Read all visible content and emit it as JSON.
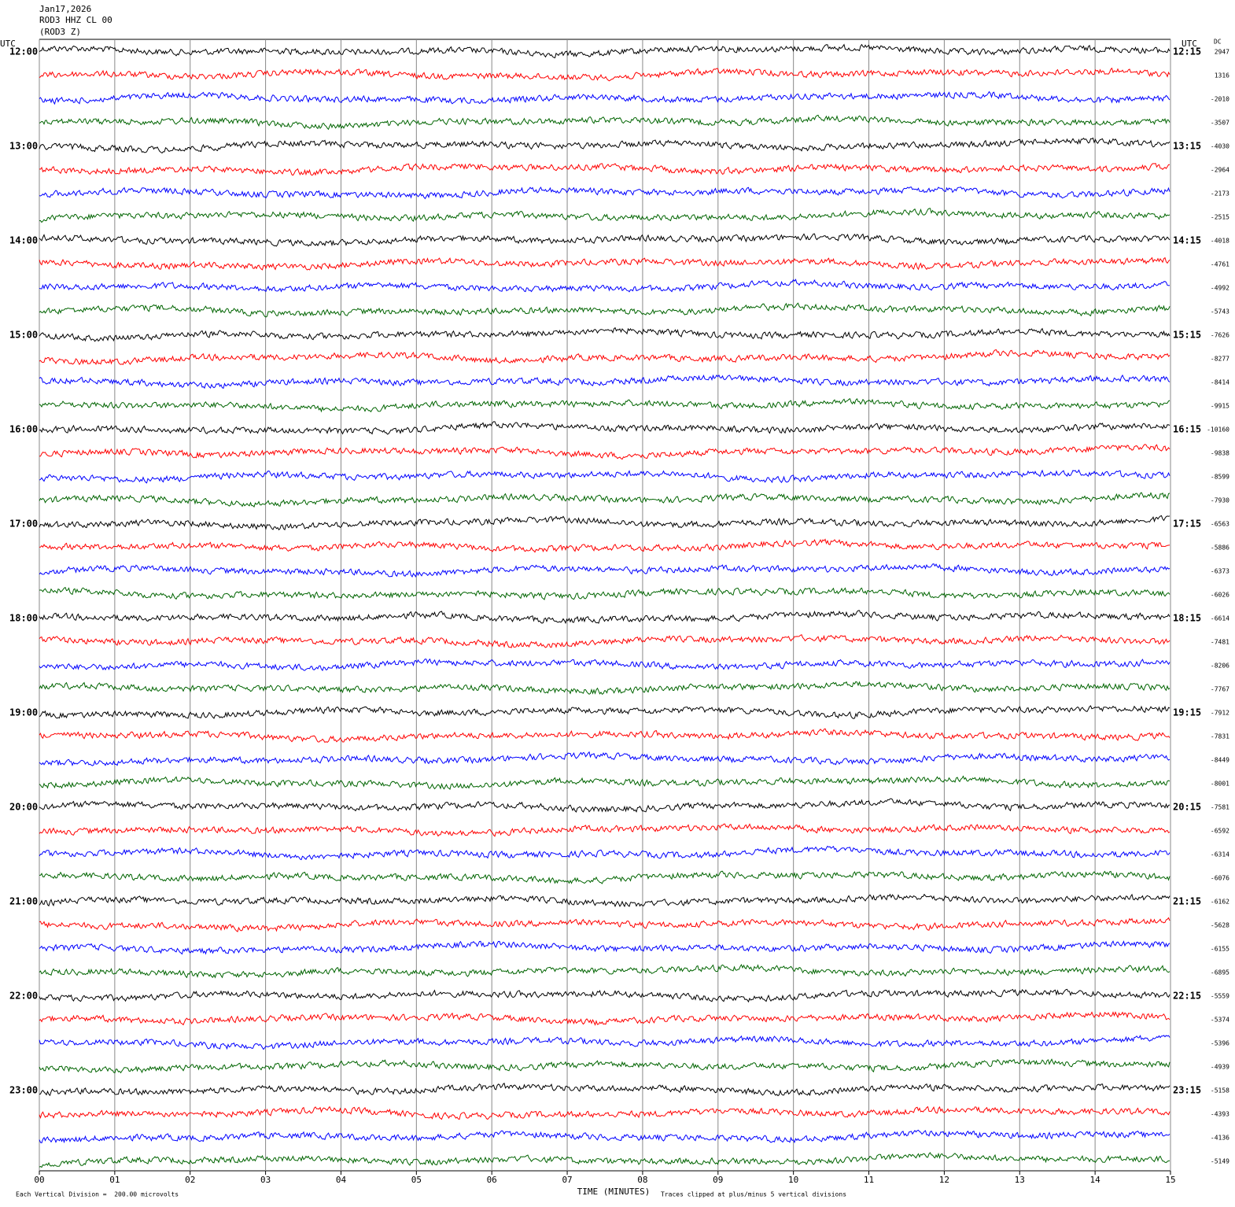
{
  "chart_data": {
    "type": "helicorder",
    "header": [
      "Jan17,2026",
      "ROD3 HHZ CL 00",
      "(ROD3 Z)"
    ],
    "left_axis_label": "UTC",
    "right_axis_label": "UTC",
    "dc_label": "DC",
    "left_labels": [
      "12:00",
      "13:00",
      "14:00",
      "15:00",
      "16:00",
      "17:00",
      "18:00",
      "19:00",
      "20:00",
      "21:00",
      "22:00",
      "23:00"
    ],
    "right_labels": [
      "12:15",
      "13:15",
      "14:15",
      "15:15",
      "16:15",
      "17:15",
      "18:15",
      "19:15",
      "20:15",
      "21:15",
      "22:15",
      "23:15"
    ],
    "dc_offsets": [
      2947,
      1316,
      -2010,
      -3507,
      -4030,
      -2964,
      -2173,
      -2515,
      -4018,
      -4761,
      -4992,
      -5743,
      -7626,
      -8277,
      -8414,
      -9915,
      -10160,
      -9838,
      -8599,
      -7930,
      -6563,
      -5886,
      -6373,
      -6026,
      -6614,
      -7481,
      -8206,
      -7767,
      -7912,
      -7831,
      -8449,
      -8001,
      -7581,
      -6592,
      -6314,
      -6076,
      -6162,
      -5628,
      -6155,
      -6895,
      -5559,
      -5374,
      -5396,
      -4939,
      -5158,
      -4393,
      -4136,
      -5149
    ],
    "trace_colors": [
      "#000000",
      "#ff0000",
      "#0000ff",
      "#006400"
    ],
    "xlabel": "TIME (MINUTES)",
    "xlim": [
      0,
      15
    ],
    "xticks": [
      {
        "value": 0,
        "label": "00"
      },
      {
        "value": 1,
        "label": "01"
      },
      {
        "value": 2,
        "label": "02"
      },
      {
        "value": 3,
        "label": "03"
      },
      {
        "value": 4,
        "label": "04"
      },
      {
        "value": 5,
        "label": "05"
      },
      {
        "value": 6,
        "label": "06"
      },
      {
        "value": 7,
        "label": "07"
      },
      {
        "value": 8,
        "label": "08"
      },
      {
        "value": 9,
        "label": "09"
      },
      {
        "value": 10,
        "label": "10"
      },
      {
        "value": 11,
        "label": "11"
      },
      {
        "value": 12,
        "label": "12"
      },
      {
        "value": 13,
        "label": "13"
      },
      {
        "value": 14,
        "label": "14"
      },
      {
        "value": 15,
        "label": "15"
      }
    ],
    "grid": true,
    "scale_note": "Each Vertical Division =  200.00 microvolts",
    "clip_note": "Traces clipped at plus/minus 5 vertical divisions"
  }
}
